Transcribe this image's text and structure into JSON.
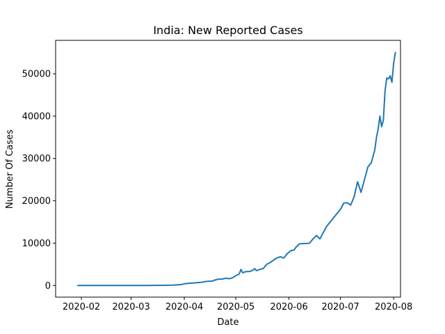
{
  "chart_data": {
    "type": "line",
    "title": "India: New Reported Cases",
    "xlabel": "Date",
    "ylabel": "Number Of Cases",
    "x_ticks": [
      "2020-02",
      "2020-03",
      "2020-04",
      "2020-05",
      "2020-06",
      "2020-07",
      "2020-08"
    ],
    "y_ticks": [
      0,
      10000,
      20000,
      30000,
      40000,
      50000
    ],
    "xlim": [
      "2020-01-17",
      "2020-08-05"
    ],
    "ylim": [
      -2750,
      57900
    ],
    "grid": false,
    "series": [
      {
        "color": "#1f77b4",
        "points": [
          [
            "2020-01-30",
            1
          ],
          [
            "2020-02-05",
            0
          ],
          [
            "2020-02-15",
            0
          ],
          [
            "2020-02-25",
            0
          ],
          [
            "2020-03-03",
            1
          ],
          [
            "2020-03-10",
            5
          ],
          [
            "2020-03-15",
            20
          ],
          [
            "2020-03-20",
            50
          ],
          [
            "2020-03-25",
            90
          ],
          [
            "2020-03-28",
            150
          ],
          [
            "2020-03-30",
            200
          ],
          [
            "2020-04-01",
            400
          ],
          [
            "2020-04-03",
            500
          ],
          [
            "2020-04-05",
            550
          ],
          [
            "2020-04-07",
            600
          ],
          [
            "2020-04-09",
            700
          ],
          [
            "2020-04-11",
            750
          ],
          [
            "2020-04-13",
            900
          ],
          [
            "2020-04-15",
            1000
          ],
          [
            "2020-04-17",
            1000
          ],
          [
            "2020-04-19",
            1300
          ],
          [
            "2020-04-21",
            1500
          ],
          [
            "2020-04-23",
            1500
          ],
          [
            "2020-04-25",
            1700
          ],
          [
            "2020-04-27",
            1600
          ],
          [
            "2020-04-29",
            1800
          ],
          [
            "2020-05-01",
            2300
          ],
          [
            "2020-05-03",
            2700
          ],
          [
            "2020-05-04",
            3800
          ],
          [
            "2020-05-05",
            3000
          ],
          [
            "2020-05-07",
            3300
          ],
          [
            "2020-05-09",
            3300
          ],
          [
            "2020-05-11",
            3600
          ],
          [
            "2020-05-12",
            4000
          ],
          [
            "2020-05-13",
            3500
          ],
          [
            "2020-05-15",
            3800
          ],
          [
            "2020-05-17",
            4000
          ],
          [
            "2020-05-19",
            5000
          ],
          [
            "2020-05-21",
            5400
          ],
          [
            "2020-05-23",
            6000
          ],
          [
            "2020-05-25",
            6500
          ],
          [
            "2020-05-27",
            6800
          ],
          [
            "2020-05-29",
            6500
          ],
          [
            "2020-05-31",
            7500
          ],
          [
            "2020-06-02",
            8200
          ],
          [
            "2020-06-04",
            8400
          ],
          [
            "2020-06-05",
            9000
          ],
          [
            "2020-06-07",
            9800
          ],
          [
            "2020-06-09",
            9900
          ],
          [
            "2020-06-11",
            9900
          ],
          [
            "2020-06-13",
            10000
          ],
          [
            "2020-06-15",
            11000
          ],
          [
            "2020-06-17",
            11800
          ],
          [
            "2020-06-19",
            11000
          ],
          [
            "2020-06-21",
            12500
          ],
          [
            "2020-06-23",
            14000
          ],
          [
            "2020-06-25",
            15000
          ],
          [
            "2020-06-27",
            16000
          ],
          [
            "2020-06-29",
            17000
          ],
          [
            "2020-07-01",
            18000
          ],
          [
            "2020-07-03",
            19500
          ],
          [
            "2020-07-05",
            19500
          ],
          [
            "2020-07-07",
            19000
          ],
          [
            "2020-07-09",
            21000
          ],
          [
            "2020-07-11",
            24500
          ],
          [
            "2020-07-13",
            22000
          ],
          [
            "2020-07-15",
            25000
          ],
          [
            "2020-07-17",
            28000
          ],
          [
            "2020-07-19",
            29000
          ],
          [
            "2020-07-21",
            32000
          ],
          [
            "2020-07-22",
            35000
          ],
          [
            "2020-07-23",
            37000
          ],
          [
            "2020-07-24",
            40000
          ],
          [
            "2020-07-25",
            37500
          ],
          [
            "2020-07-26",
            39000
          ],
          [
            "2020-07-27",
            46000
          ],
          [
            "2020-07-28",
            49000
          ],
          [
            "2020-07-29",
            48800
          ],
          [
            "2020-07-30",
            49500
          ],
          [
            "2020-07-31",
            48000
          ],
          [
            "2020-08-01",
            52500
          ],
          [
            "2020-08-02",
            55000
          ]
        ]
      }
    ]
  }
}
